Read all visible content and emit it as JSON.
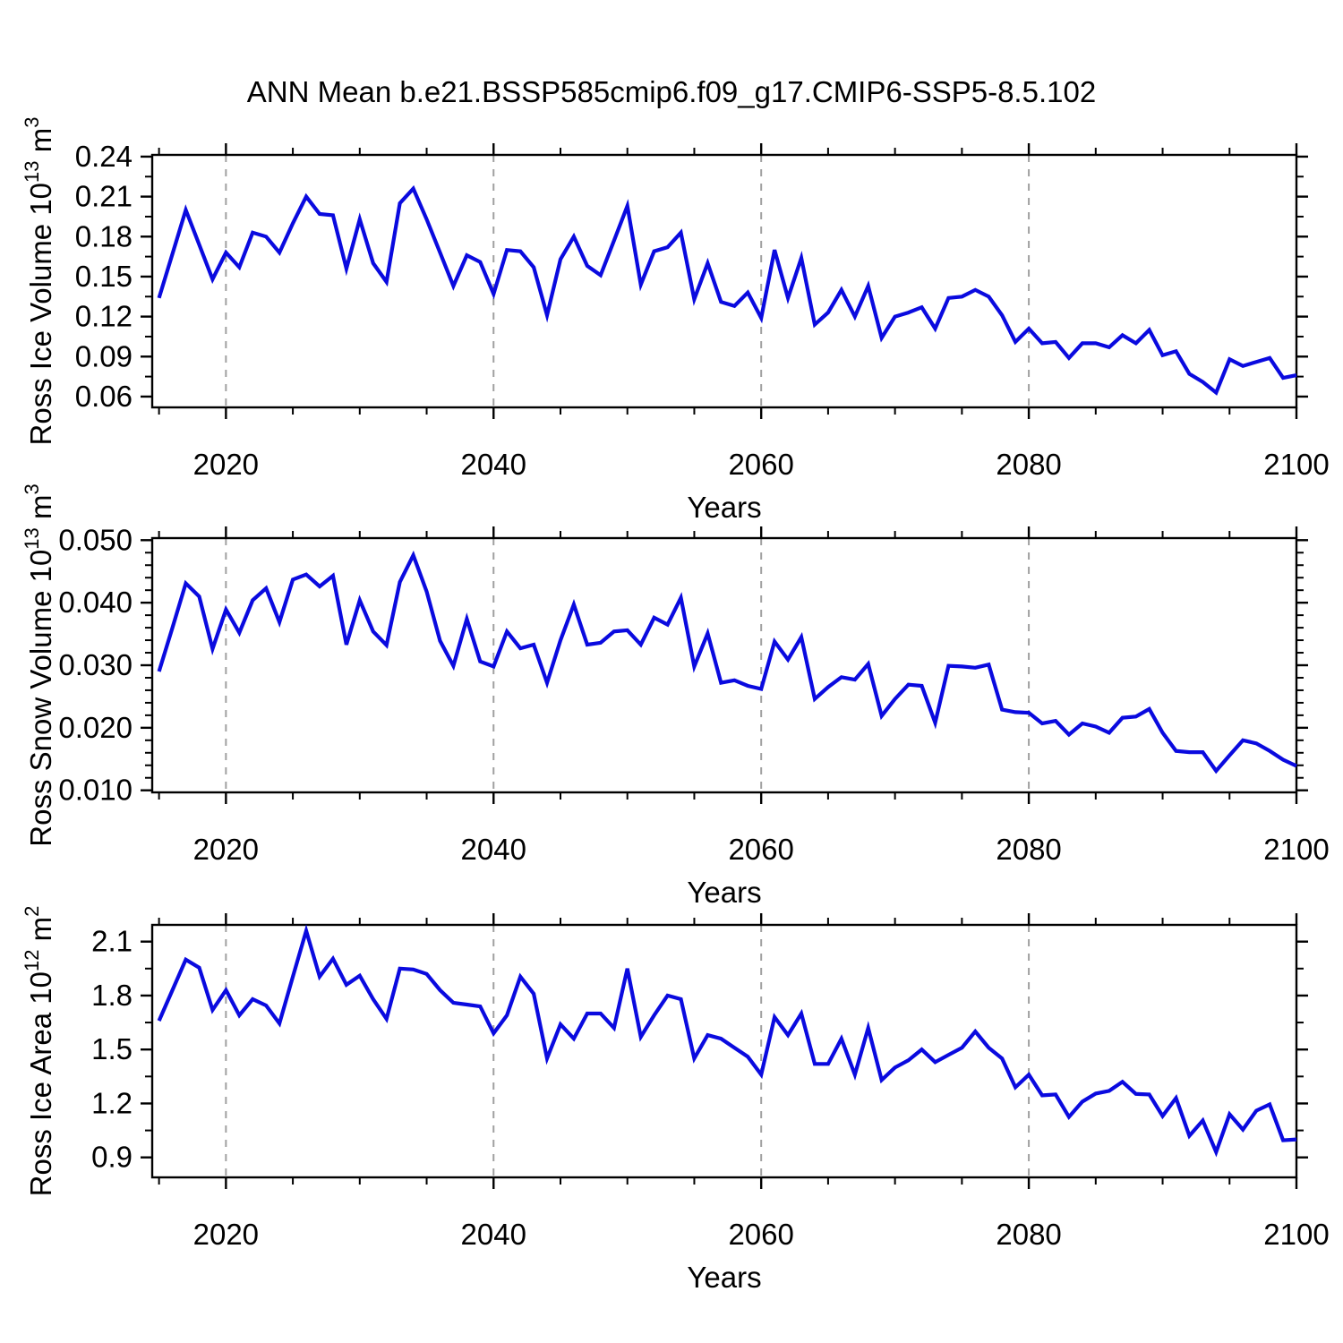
{
  "title": "ANN Mean b.e21.BSSP585cmip6.f09_g17.CMIP6-SSP5-8.5.102",
  "colors": {
    "line": "#0a0adf",
    "frame": "#000000",
    "grid": "#a0a0a0",
    "background": "#ffffff",
    "text": "#000000"
  },
  "x_axis": {
    "label": "Years",
    "range": [
      2014.49,
      2100
    ],
    "major_ticks": [
      2020,
      2040,
      2060,
      2080,
      2100
    ],
    "major_tick_labels": [
      "2020",
      "2040",
      "2060",
      "2080",
      "2100"
    ],
    "minor_ticks": [
      2015,
      2025,
      2030,
      2035,
      2045,
      2050,
      2055,
      2065,
      2070,
      2075,
      2085,
      2090,
      2095
    ],
    "gridline_years": [
      2020,
      2040,
      2060,
      2080
    ]
  },
  "chart_data": [
    {
      "type": "line",
      "ylabel": {
        "prefix": "Ross Ice Volume 10",
        "exp": "13",
        "unit": " m",
        "unit_exp": "3"
      },
      "ylim": [
        0.0519,
        0.2413
      ],
      "y_major_ticks": [
        0.24,
        0.21,
        0.18,
        0.15,
        0.12,
        0.09,
        0.06
      ],
      "y_major_tick_labels": [
        "0.24",
        "0.21",
        "0.18",
        "0.15",
        "0.12",
        "0.09",
        "0.06"
      ],
      "y_minor_ticks": [
        0.225,
        0.195,
        0.165,
        0.135,
        0.105,
        0.075
      ],
      "x_start_year": 2015,
      "values": [
        0.134,
        0.167,
        0.2,
        0.174,
        0.148,
        0.168,
        0.157,
        0.183,
        0.18,
        0.168,
        0.19,
        0.21,
        0.197,
        0.196,
        0.156,
        0.193,
        0.16,
        0.146,
        0.205,
        0.216,
        0.193,
        0.168,
        0.143,
        0.166,
        0.161,
        0.137,
        0.17,
        0.169,
        0.157,
        0.121,
        0.163,
        0.18,
        0.158,
        0.151,
        0.177,
        0.203,
        0.144,
        0.169,
        0.172,
        0.183,
        0.133,
        0.16,
        0.131,
        0.128,
        0.138,
        0.119,
        0.17,
        0.134,
        0.164,
        0.114,
        0.123,
        0.14,
        0.12,
        0.143,
        0.104,
        0.12,
        0.123,
        0.127,
        0.111,
        0.134,
        0.135,
        0.14,
        0.135,
        0.121,
        0.101,
        0.111,
        0.1,
        0.101,
        0.089,
        0.1,
        0.1,
        0.097,
        0.106,
        0.1,
        0.11,
        0.091,
        0.094,
        0.077,
        0.071,
        0.063,
        0.088,
        0.083,
        0.086,
        0.089,
        0.074,
        0.076
      ]
    },
    {
      "type": "line",
      "ylabel": {
        "prefix": "Ross Snow Volume 10",
        "exp": "13",
        "unit": " m",
        "unit_exp": "3"
      },
      "ylim": [
        0.00967,
        0.05033
      ],
      "y_major_ticks": [
        0.05,
        0.04,
        0.03,
        0.02,
        0.01
      ],
      "y_major_tick_labels": [
        "0.050",
        "0.040",
        "0.030",
        "0.020",
        "0.010"
      ],
      "y_minor_ticks": [
        0.048,
        0.046,
        0.044,
        0.042,
        0.038,
        0.036,
        0.034,
        0.032,
        0.028,
        0.026,
        0.024,
        0.022,
        0.018,
        0.016,
        0.014,
        0.012
      ],
      "x_start_year": 2015,
      "values": [
        0.029,
        0.036,
        0.0431,
        0.041,
        0.0326,
        0.0389,
        0.0352,
        0.0404,
        0.0423,
        0.0369,
        0.0437,
        0.0445,
        0.0426,
        0.0443,
        0.0333,
        0.0404,
        0.0354,
        0.0332,
        0.0433,
        0.0476,
        0.0418,
        0.0339,
        0.0299,
        0.0374,
        0.0306,
        0.0298,
        0.0354,
        0.0327,
        0.0333,
        0.0272,
        0.034,
        0.0397,
        0.0333,
        0.0336,
        0.0354,
        0.0356,
        0.0333,
        0.0376,
        0.0365,
        0.0408,
        0.0298,
        0.0351,
        0.0272,
        0.0276,
        0.0267,
        0.0262,
        0.0338,
        0.0309,
        0.0345,
        0.0246,
        0.0265,
        0.0281,
        0.0277,
        0.0302,
        0.0219,
        0.0246,
        0.0269,
        0.0267,
        0.0208,
        0.0299,
        0.0298,
        0.0296,
        0.0301,
        0.0229,
        0.0225,
        0.0224,
        0.0207,
        0.0211,
        0.0189,
        0.0207,
        0.0202,
        0.0192,
        0.0216,
        0.0218,
        0.023,
        0.0192,
        0.0163,
        0.0161,
        0.0161,
        0.0131,
        0.0156,
        0.018,
        0.0175,
        0.0163,
        0.0149,
        0.0139
      ]
    },
    {
      "type": "line",
      "ylabel": {
        "prefix": "Ross Ice Area 10",
        "exp": "12",
        "unit": " m",
        "unit_exp": "2"
      },
      "ylim": [
        0.789,
        2.193
      ],
      "y_major_ticks": [
        2.1,
        1.8,
        1.5,
        1.2,
        0.9
      ],
      "y_major_tick_labels": [
        "2.1",
        "1.8",
        "1.5",
        "1.2",
        "0.9"
      ],
      "y_minor_ticks": [
        1.95,
        1.65,
        1.35,
        1.05
      ],
      "x_start_year": 2015,
      "values": [
        1.66,
        1.83,
        2.0,
        1.955,
        1.72,
        1.83,
        1.69,
        1.78,
        1.745,
        1.645,
        1.905,
        2.16,
        1.905,
        2.005,
        1.86,
        1.91,
        1.78,
        1.67,
        1.95,
        1.945,
        1.92,
        1.83,
        1.76,
        1.75,
        1.74,
        1.59,
        1.69,
        1.905,
        1.81,
        1.45,
        1.64,
        1.56,
        1.7,
        1.7,
        1.62,
        1.95,
        1.57,
        1.69,
        1.8,
        1.78,
        1.45,
        1.58,
        1.56,
        1.51,
        1.46,
        1.36,
        1.68,
        1.58,
        1.7,
        1.42,
        1.42,
        1.56,
        1.36,
        1.62,
        1.33,
        1.4,
        1.44,
        1.5,
        1.43,
        1.47,
        1.51,
        1.6,
        1.51,
        1.45,
        1.29,
        1.36,
        1.245,
        1.25,
        1.125,
        1.21,
        1.255,
        1.27,
        1.32,
        1.253,
        1.25,
        1.13,
        1.23,
        1.02,
        1.105,
        0.93,
        1.14,
        1.055,
        1.16,
        1.195,
        0.995,
        1.0
      ]
    }
  ]
}
